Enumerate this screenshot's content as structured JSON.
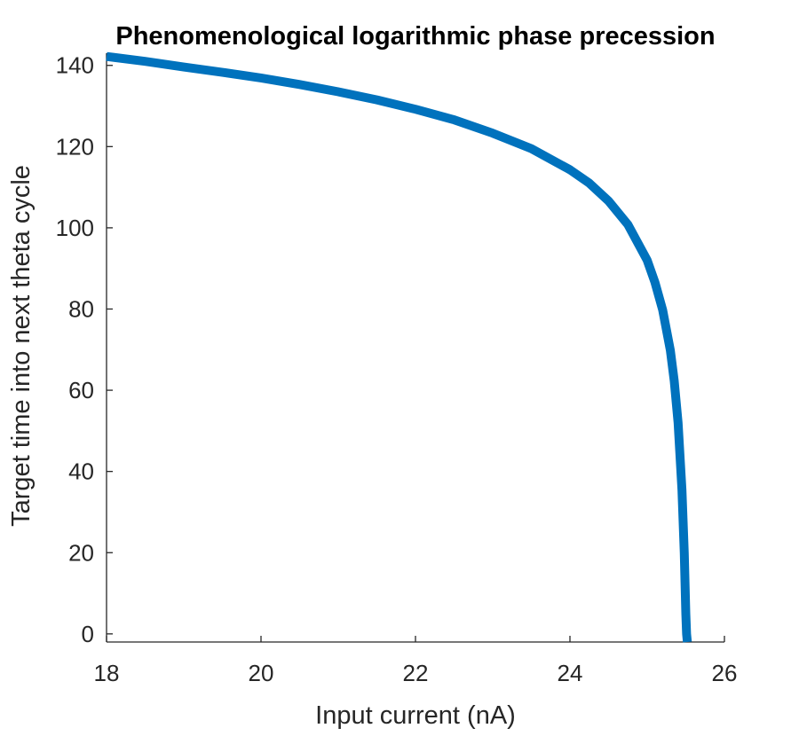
{
  "chart_data": {
    "type": "line",
    "title": "Phenomenological logarithmic phase precession",
    "xlabel": "Input current (nA)",
    "ylabel": "Target time into next theta cycle",
    "xlim": [
      18,
      26
    ],
    "ylim": [
      -2,
      143
    ],
    "xticks": [
      18,
      20,
      22,
      24,
      26
    ],
    "xtick_labels": [
      "18",
      "20",
      "22",
      "24",
      "26"
    ],
    "yticks": [
      0,
      20,
      40,
      60,
      80,
      100,
      120,
      140
    ],
    "ytick_labels": [
      "0",
      "20",
      "40",
      "60",
      "80",
      "100",
      "120",
      "140"
    ],
    "grid": false,
    "legend": "none",
    "line_color": "#0072BD",
    "axis_color": "#262626",
    "series": [
      {
        "x": [
          18.0,
          18.5,
          19.0,
          19.5,
          20.0,
          20.5,
          21.0,
          21.5,
          22.0,
          22.5,
          23.0,
          23.5,
          24.0,
          24.25,
          24.5,
          24.75,
          25.0,
          25.1,
          25.2,
          25.3,
          25.35,
          25.4,
          25.45,
          25.48,
          25.5,
          25.51,
          25.52
        ],
        "y": [
          142.2,
          141.0,
          139.6,
          138.3,
          136.9,
          135.3,
          133.5,
          131.5,
          129.2,
          126.6,
          123.3,
          119.5,
          114.3,
          111.0,
          106.6,
          100.8,
          92.0,
          86.6,
          79.8,
          69.8,
          62.3,
          52.0,
          35.5,
          20.0,
          5.0,
          0.0,
          -2.0
        ]
      }
    ]
  }
}
